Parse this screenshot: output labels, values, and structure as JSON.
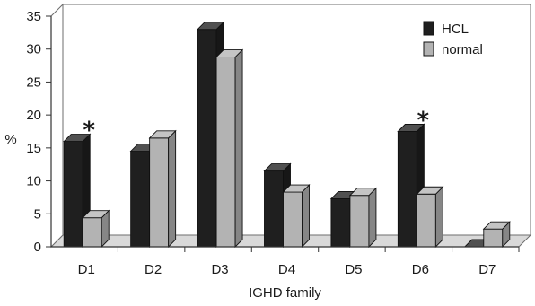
{
  "chart_data": {
    "type": "bar",
    "categories": [
      "D1",
      "D2",
      "D3",
      "D4",
      "D5",
      "D6",
      "D7"
    ],
    "series": [
      {
        "name": "HCL",
        "values": [
          16,
          14.5,
          33,
          11.5,
          7.3,
          17.5,
          0
        ],
        "color": "#1f1f1f"
      },
      {
        "name": "normal",
        "values": [
          4.4,
          16.5,
          28.8,
          8.3,
          7.8,
          8,
          2.7
        ],
        "color": "#b3b3b3"
      }
    ],
    "annotations": [
      {
        "category": "D1",
        "text": "*"
      },
      {
        "category": "D6",
        "text": "*"
      }
    ],
    "xlabel": "IGHD family",
    "ylabel": "%",
    "ylim": [
      0,
      35
    ],
    "yticks": [
      "0",
      "5",
      "10",
      "15",
      "20",
      "25",
      "30",
      "35"
    ],
    "grid": false,
    "legend_position": "top-right",
    "style": "3d-bar"
  }
}
